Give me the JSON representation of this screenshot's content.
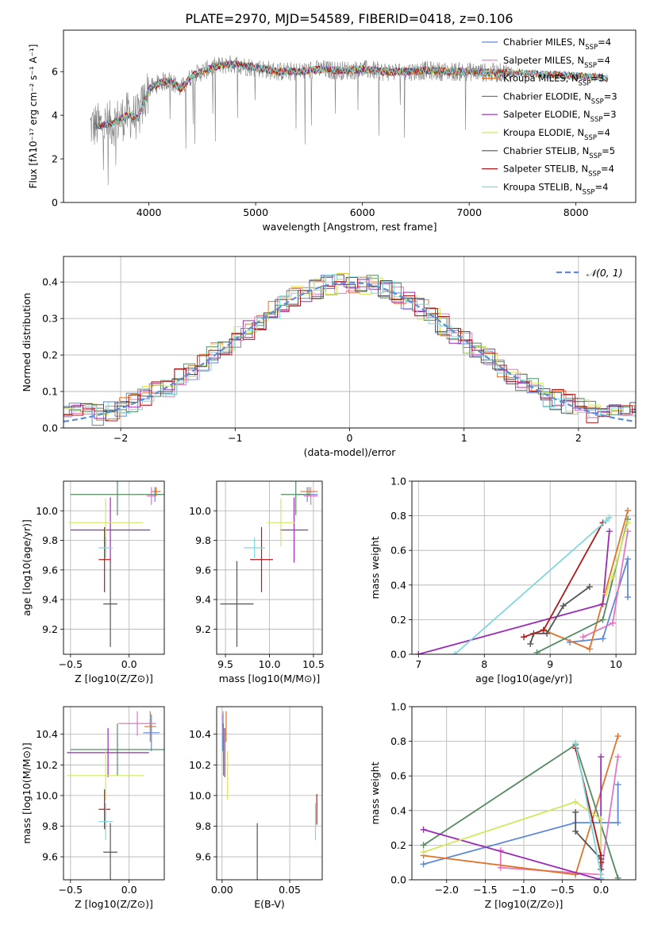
{
  "figure_title": "PLATE=2970, MJD=54589, FIBERID=0418, z=0.106",
  "colors": {
    "Chabrier MILES": "#5f8ad8",
    "Salpeter MILES": "#e377c2",
    "Kroupa MILES": "#e0742b",
    "Chabrier ELODIE": "#548b62",
    "Salpeter ELODIE": "#9a2bb4",
    "Kroupa ELODIE": "#d4e85a",
    "Chabrier STELIB": "#555555",
    "Salpeter STELIB": "#b01a1a",
    "Kroupa STELIB": "#7fd8dc",
    "normal_curve": "#5f8ad8"
  },
  "chart_data": [
    {
      "id": "spectrum",
      "type": "line",
      "xlabel": "wavelength [Angstrom, rest frame]",
      "ylabel": "Flux [fλ10⁻¹⁷ erg cm⁻² s⁻¹ A⁻¹]",
      "xlim": [
        3200,
        8560
      ],
      "ylim": [
        0,
        7.9
      ],
      "xticks": [
        4000,
        5000,
        6000,
        7000,
        8000
      ],
      "yticks": [
        0,
        2,
        4,
        6
      ],
      "grid": false,
      "legend_position": "right",
      "legend": [
        "Chabrier MILES, N_SSP=4",
        "Salpeter MILES, N_SSP=4",
        "Kroupa MILES, N_SSP=3",
        "Chabrier ELODIE, N_SSP=3",
        "Salpeter ELODIE, N_SSP=3",
        "Kroupa ELODIE, N_SSP=4",
        "Chabrier STELIB, N_SSP=5",
        "Salpeter STELIB, N_SSP=4",
        "Kroupa STELIB, N_SSP=4"
      ],
      "observed_spectrum_color": "#808080",
      "continuum": {
        "x": [
          3500,
          3650,
          3800,
          3900,
          3950,
          4000,
          4100,
          4200,
          4300,
          4400,
          4500,
          4600,
          4700,
          4800,
          4900,
          5000,
          5200,
          5400,
          5600,
          5800,
          6000,
          6200,
          6400,
          6600,
          6800,
          7000,
          7200,
          7400,
          7600,
          7800,
          8000,
          8200,
          8300
        ],
        "y": [
          3.5,
          3.6,
          4.0,
          3.9,
          4.6,
          5.2,
          5.5,
          5.6,
          5.2,
          5.8,
          6.0,
          6.2,
          6.3,
          6.35,
          6.25,
          6.2,
          6.0,
          6.0,
          6.1,
          6.05,
          6.1,
          6.0,
          6.0,
          6.05,
          6.0,
          6.0,
          5.95,
          5.95,
          5.9,
          5.85,
          5.8,
          5.75,
          5.7
        ]
      }
    },
    {
      "id": "residuals",
      "type": "histogram",
      "xlabel": "(data-model)/error",
      "ylabel": "Normed distribution",
      "xlim": [
        -2.5,
        2.5
      ],
      "ylim": [
        0,
        0.47
      ],
      "xticks": [
        -2,
        -1,
        0,
        1,
        2
      ],
      "yticks": [
        0.0,
        0.1,
        0.2,
        0.3,
        0.4
      ],
      "grid": true,
      "legend": [
        "N(0,1)"
      ],
      "legend_position": "top-right",
      "bin_width": 0.1
    },
    {
      "id": "age_vs_Z",
      "type": "errorbar",
      "xlabel": "Z [log10(Z/Z⊙)]",
      "ylabel": "age [log10(age/yr)]",
      "xlim": [
        -0.56,
        0.3
      ],
      "ylim": [
        9.03,
        10.2
      ],
      "xticks": [
        -0.5,
        0.0
      ],
      "yticks": [
        9.2,
        9.4,
        9.6,
        9.8,
        10.0
      ],
      "grid": true,
      "points": [
        {
          "model": "Chabrier MILES",
          "x": 0.22,
          "xerr": 0.05,
          "y": 10.11,
          "yerr": 0.05
        },
        {
          "model": "Salpeter MILES",
          "x": 0.19,
          "xerr": 0.04,
          "y": 10.1,
          "yerr": 0.06
        },
        {
          "model": "Kroupa MILES",
          "x": 0.23,
          "xerr": 0.04,
          "y": 10.13,
          "yerr": 0.03
        },
        {
          "model": "Chabrier ELODIE",
          "x": -0.1,
          "xerr": 0.4,
          "y": 10.11,
          "yerr": 0.14
        },
        {
          "model": "Salpeter ELODIE",
          "x": -0.16,
          "xerr": 0.34,
          "y": 9.87,
          "yerr": 0.22
        },
        {
          "model": "Kroupa ELODIE",
          "x": -0.2,
          "xerr": 0.32,
          "y": 9.92,
          "yerr": 0.16
        },
        {
          "model": "Chabrier STELIB",
          "x": -0.16,
          "xerr": 0.06,
          "y": 9.37,
          "yerr": 0.29
        },
        {
          "model": "Salpeter STELIB",
          "x": -0.21,
          "xerr": 0.05,
          "y": 9.67,
          "yerr": 0.22
        },
        {
          "model": "Kroupa STELIB",
          "x": -0.2,
          "xerr": 0.06,
          "y": 9.75,
          "yerr": 0.07
        }
      ]
    },
    {
      "id": "age_vs_mass",
      "type": "errorbar",
      "xlabel": "mass [log10(M/M⊙)]",
      "ylabel": "",
      "xlim": [
        9.4,
        10.6
      ],
      "ylim": [
        9.03,
        10.2
      ],
      "xticks": [
        9.5,
        10.0,
        10.5
      ],
      "yticks": [
        9.2,
        9.4,
        9.6,
        9.8,
        10.0
      ],
      "grid": true,
      "points": [
        {
          "model": "Chabrier MILES",
          "x": 10.43,
          "xerr": 0.12,
          "y": 10.11,
          "yerr": 0.05
        },
        {
          "model": "Salpeter MILES",
          "x": 10.47,
          "xerr": 0.08,
          "y": 10.1,
          "yerr": 0.06
        },
        {
          "model": "Kroupa MILES",
          "x": 10.45,
          "xerr": 0.1,
          "y": 10.13,
          "yerr": 0.03
        },
        {
          "model": "Chabrier ELODIE",
          "x": 10.3,
          "xerr": 0.17,
          "y": 10.11,
          "yerr": 0.14
        },
        {
          "model": "Salpeter ELODIE",
          "x": 10.28,
          "xerr": 0.16,
          "y": 9.87,
          "yerr": 0.22
        },
        {
          "model": "Kroupa ELODIE",
          "x": 10.13,
          "xerr": 0.16,
          "y": 9.92,
          "yerr": 0.16
        },
        {
          "model": "Chabrier STELIB",
          "x": 9.63,
          "xerr": 0.19,
          "y": 9.37,
          "yerr": 0.29
        },
        {
          "model": "Salpeter STELIB",
          "x": 9.91,
          "xerr": 0.13,
          "y": 9.67,
          "yerr": 0.22
        },
        {
          "model": "Kroupa STELIB",
          "x": 9.83,
          "xerr": 0.12,
          "y": 9.75,
          "yerr": 0.07
        }
      ]
    },
    {
      "id": "weight_vs_age",
      "type": "line",
      "xlabel": "age [log10(age/yr)]",
      "ylabel": "mass weight",
      "xlim": [
        6.9,
        10.3
      ],
      "ylim": [
        0,
        1.0
      ],
      "xticks": [
        7,
        8,
        9,
        10
      ],
      "yticks": [
        0.0,
        0.2,
        0.4,
        0.6,
        0.8,
        1.0
      ],
      "grid": true,
      "series": [
        {
          "model": "Chabrier MILES",
          "x": [
            10.18,
            10.18,
            9.8,
            9.3
          ],
          "y": [
            0.33,
            0.55,
            0.09,
            0.07
          ]
        },
        {
          "model": "Salpeter MILES",
          "x": [
            10.18,
            9.95,
            9.5
          ],
          "y": [
            0.71,
            0.18,
            0.1
          ]
        },
        {
          "model": "Kroupa MILES",
          "x": [
            10.18,
            9.6,
            8.9
          ],
          "y": [
            0.83,
            0.03,
            0.14
          ]
        },
        {
          "model": "Chabrier ELODIE",
          "x": [
            10.18,
            9.8,
            8.8
          ],
          "y": [
            0.78,
            0.2,
            0.01
          ]
        },
        {
          "model": "Salpeter ELODIE",
          "x": [
            9.9,
            9.8,
            7.0
          ],
          "y": [
            0.71,
            0.29,
            0.0
          ]
        },
        {
          "model": "Kroupa ELODIE",
          "x": [
            10.18,
            9.95,
            9.85
          ],
          "y": [
            0.76,
            0.45,
            0.35
          ]
        },
        {
          "model": "Chabrier STELIB",
          "x": [
            9.6,
            9.2,
            8.95,
            8.75,
            8.7
          ],
          "y": [
            0.39,
            0.28,
            0.12,
            0.12,
            0.06
          ]
        },
        {
          "model": "Salpeter STELIB",
          "x": [
            9.8,
            8.9,
            8.6
          ],
          "y": [
            0.76,
            0.14,
            0.1
          ]
        },
        {
          "model": "Kroupa STELIB",
          "x": [
            9.9,
            9.85,
            7.55
          ],
          "y": [
            0.79,
            0.77,
            0.0
          ]
        }
      ]
    },
    {
      "id": "mass_vs_Z",
      "type": "errorbar",
      "xlabel": "Z [log10(Z/Z⊙)]",
      "ylabel": "mass [log10(M/M⊙)]",
      "xlim": [
        -0.56,
        0.3
      ],
      "ylim": [
        9.45,
        10.58
      ],
      "xticks": [
        -0.5,
        0.0
      ],
      "yticks": [
        9.6,
        9.8,
        10.0,
        10.2,
        10.4
      ],
      "grid": true,
      "points": [
        {
          "model": "Chabrier MILES",
          "x": 0.19,
          "xerr": 0.07,
          "y": 10.41,
          "yerr": 0.12
        },
        {
          "model": "Salpeter MILES",
          "x": 0.07,
          "xerr": 0.16,
          "y": 10.47,
          "yerr": 0.08
        },
        {
          "model": "Kroupa MILES",
          "x": 0.18,
          "xerr": 0.05,
          "y": 10.45,
          "yerr": 0.1
        },
        {
          "model": "Chabrier ELODIE",
          "x": -0.1,
          "xerr": 0.4,
          "y": 10.3,
          "yerr": 0.17
        },
        {
          "model": "Salpeter ELODIE",
          "x": -0.18,
          "xerr": 0.35,
          "y": 10.28,
          "yerr": 0.16
        },
        {
          "model": "Kroupa ELODIE",
          "x": -0.2,
          "xerr": 0.33,
          "y": 10.13,
          "yerr": 0.16
        },
        {
          "model": "Chabrier STELIB",
          "x": -0.16,
          "xerr": 0.06,
          "y": 9.63,
          "yerr": 0.19
        },
        {
          "model": "Salpeter STELIB",
          "x": -0.21,
          "xerr": 0.05,
          "y": 9.91,
          "yerr": 0.13
        },
        {
          "model": "Kroupa STELIB",
          "x": -0.2,
          "xerr": 0.06,
          "y": 9.83,
          "yerr": 0.12
        }
      ]
    },
    {
      "id": "mass_vs_ebv",
      "type": "errorbar",
      "xlabel": "E(B-V)",
      "ylabel": "",
      "xlim": [
        -0.004,
        0.074
      ],
      "ylim": [
        9.45,
        10.58
      ],
      "xticks": [
        0.0,
        0.05
      ],
      "yticks": [
        9.6,
        9.8,
        10.0,
        10.2,
        10.4
      ],
      "grid": true,
      "points": [
        {
          "model": "Chabrier MILES",
          "x": 0.0005,
          "xerr": 0,
          "y": 10.41,
          "yerr": 0.12
        },
        {
          "model": "Salpeter MILES",
          "x": 0.0008,
          "xerr": 0,
          "y": 10.47,
          "yerr": 0.08
        },
        {
          "model": "Kroupa MILES",
          "x": 0.003,
          "xerr": 0,
          "y": 10.45,
          "yerr": 0.1
        },
        {
          "model": "Chabrier ELODIE",
          "x": 0.001,
          "xerr": 0,
          "y": 10.3,
          "yerr": 0.17
        },
        {
          "model": "Salpeter ELODIE",
          "x": 0.002,
          "xerr": 0,
          "y": 10.28,
          "yerr": 0.16
        },
        {
          "model": "Kroupa ELODIE",
          "x": 0.004,
          "xerr": 0,
          "y": 10.13,
          "yerr": 0.16
        },
        {
          "model": "Chabrier STELIB",
          "x": 0.026,
          "xerr": 0,
          "y": 9.63,
          "yerr": 0.19
        },
        {
          "model": "Salpeter STELIB",
          "x": 0.07,
          "xerr": 0,
          "y": 9.91,
          "yerr": 0.1
        },
        {
          "model": "Kroupa STELIB",
          "x": 0.069,
          "xerr": 0,
          "y": 9.83,
          "yerr": 0.12
        }
      ]
    },
    {
      "id": "weight_vs_Z",
      "type": "line",
      "xlabel": "Z [log10(Z/Z⊙)]",
      "ylabel": "mass weight",
      "xlim": [
        -2.45,
        0.45
      ],
      "ylim": [
        0,
        1.0
      ],
      "xticks": [
        -2.0,
        -1.5,
        -1.0,
        -0.5,
        0.0
      ],
      "yticks": [
        0.0,
        0.2,
        0.4,
        0.6,
        0.8,
        1.0
      ],
      "grid": true,
      "series": [
        {
          "model": "Chabrier MILES",
          "x": [
            0.22,
            0.22,
            -0.33,
            -2.3
          ],
          "y": [
            0.55,
            0.33,
            0.33,
            0.09
          ]
        },
        {
          "model": "Salpeter MILES",
          "x": [
            0.22,
            0.0,
            -1.3,
            -1.3
          ],
          "y": [
            0.71,
            0.03,
            0.07,
            0.17
          ]
        },
        {
          "model": "Kroupa MILES",
          "x": [
            0.22,
            -0.33,
            -2.3
          ],
          "y": [
            0.83,
            0.03,
            0.14
          ]
        },
        {
          "model": "Chabrier ELODIE",
          "x": [
            0.22,
            -0.33,
            -2.3
          ],
          "y": [
            0.01,
            0.78,
            0.2
          ]
        },
        {
          "model": "Salpeter ELODIE",
          "x": [
            0.0,
            0.0,
            -2.3
          ],
          "y": [
            0.71,
            0.0,
            0.29
          ]
        },
        {
          "model": "Kroupa ELODIE",
          "x": [
            0.0,
            0.0,
            -0.33,
            -2.3
          ],
          "y": [
            0.01,
            0.35,
            0.45,
            0.16
          ]
        },
        {
          "model": "Chabrier STELIB",
          "x": [
            -0.33,
            -0.33,
            0.0,
            0.0
          ],
          "y": [
            0.39,
            0.28,
            0.12,
            0.06
          ]
        },
        {
          "model": "Salpeter STELIB",
          "x": [
            -0.33,
            0.0,
            0.0
          ],
          "y": [
            0.76,
            0.14,
            0.1
          ]
        },
        {
          "model": "Kroupa STELIB",
          "x": [
            -0.33,
            0.0,
            0.0
          ],
          "y": [
            0.79,
            0.03,
            0.01
          ]
        }
      ]
    }
  ]
}
